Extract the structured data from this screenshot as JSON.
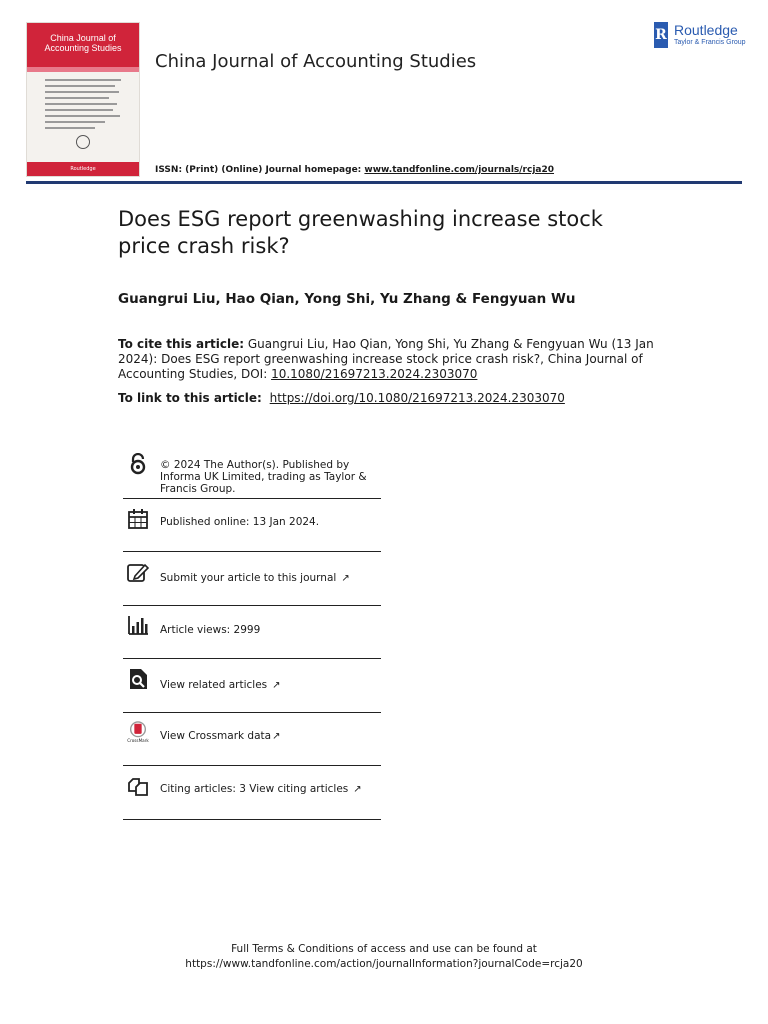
{
  "cover": {
    "title": "China Journal of Accounting Studies",
    "publisher_logo_text": "Routledge"
  },
  "header": {
    "journal_name": "China Journal of Accounting Studies",
    "publisher_name": "Routledge",
    "publisher_sub": "Taylor & Francis Group",
    "issn_label": "ISSN: (Print) (Online) Journal homepage:",
    "homepage_url": "www.tandfonline.com/journals/rcja20"
  },
  "article": {
    "title": "Does ESG report greenwashing increase stock price crash risk?",
    "authors": "Guangrui Liu, Hao Qian, Yong Shi, Yu Zhang & Fengyuan Wu",
    "cite_label": "To cite this article:",
    "cite_text": "Guangrui Liu, Hao Qian, Yong Shi, Yu Zhang & Fengyuan Wu (13 Jan 2024): Does ESG report greenwashing increase stock price crash risk?, China Journal of Accounting Studies, DOI:",
    "doi": "10.1080/21697213.2024.2303070",
    "link_label": "To link to this article:",
    "link_url": "https://doi.org/10.1080/21697213.2024.2303070"
  },
  "info_rows": {
    "copyright": "© 2024 The Author(s). Published by Informa UK Limited, trading as Taylor & Francis Group.",
    "published": "Published online: 13 Jan 2024.",
    "submit": "Submit your article to this journal",
    "views": "Article views: 2999",
    "related": "View related articles",
    "crossmark": "View Crossmark data",
    "citing": "Citing articles: 3 View citing articles"
  },
  "footer": {
    "line1": "Full Terms & Conditions of access and use can be found at",
    "line2": "https://www.tandfonline.com/action/journalInformation?journalCode=rcja20"
  },
  "colors": {
    "cover_red": "#d0243a",
    "rule_navy": "#213a72",
    "publisher_blue": "#2a5bb0"
  }
}
